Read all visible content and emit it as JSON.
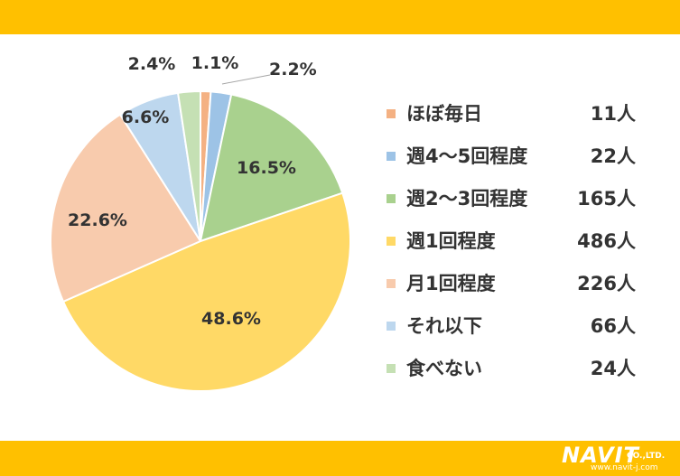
{
  "colors": {
    "band": "#FFC000",
    "slice_border": "#ffffff",
    "text": "#333333"
  },
  "chart_data": {
    "type": "pie",
    "title": "",
    "categories": [
      "ほぼ毎日",
      "週4～5回程度",
      "週2～3回程度",
      "週1回程度",
      "月1回程度",
      "それ以下",
      "食べない"
    ],
    "values": [
      11,
      22,
      165,
      486,
      226,
      66,
      24
    ],
    "percent_labels": [
      "1.1%",
      "2.2%",
      "16.5%",
      "48.6%",
      "22.6%",
      "6.6%",
      "2.4%"
    ],
    "legend_counts": [
      "11人",
      "22人",
      "165人",
      "486人",
      "226人",
      "66人",
      "24人"
    ],
    "colors": [
      "#F4B183",
      "#9DC3E6",
      "#A9D18E",
      "#FFD966",
      "#F8CBAD",
      "#BDD7EE",
      "#C5E0B4"
    ],
    "start_angle_deg": 0,
    "direction": "clockwise",
    "legend_position": "right"
  },
  "logo": {
    "word": "NAVIT",
    "company": "CO.,LTD.",
    "url": "www.navit-j.com"
  }
}
